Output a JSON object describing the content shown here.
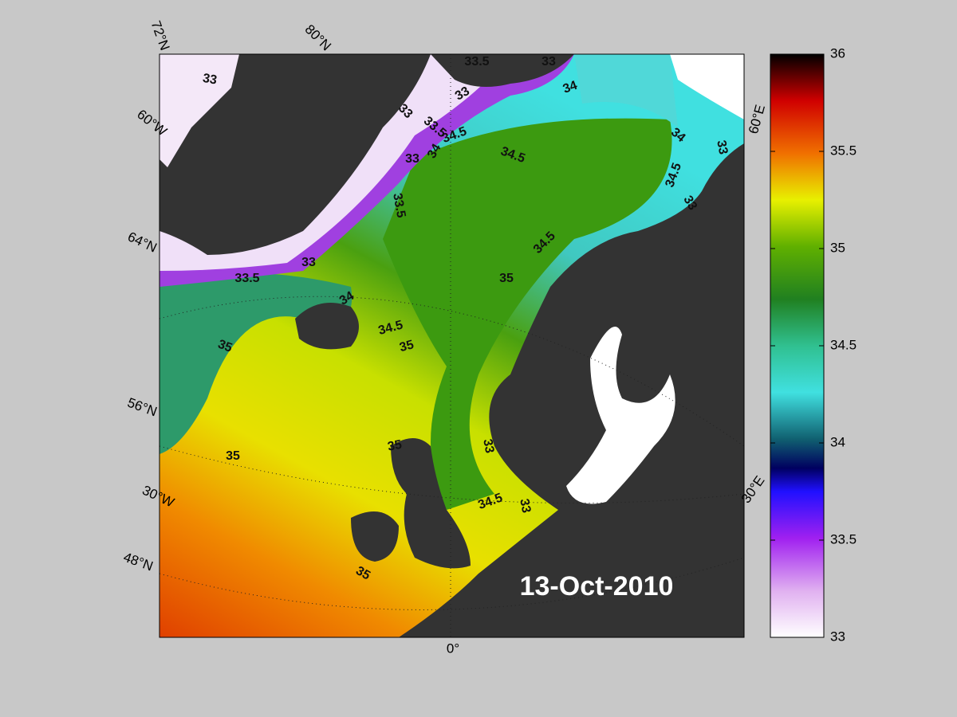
{
  "date": "13-Oct-2010",
  "colorbar": {
    "clim": [
      33,
      36
    ],
    "ticks": [
      33,
      33.5,
      34,
      34.5,
      35,
      35.5,
      36
    ]
  },
  "grid_labels": [
    "72°N",
    "80°N",
    "60°W",
    "64°N",
    "56°N",
    "30°W",
    "48°N",
    "0°",
    "30°E",
    "60°E"
  ],
  "contour_labels": [
    33,
    33.5,
    33,
    34,
    33,
    33,
    33.5,
    34.5,
    34,
    33,
    34.5,
    34,
    33,
    34.5,
    33,
    33.5,
    33,
    34.5,
    33.5,
    35,
    34,
    34.5,
    35,
    35,
    35,
    35,
    33,
    34.5,
    33,
    35
  ]
}
